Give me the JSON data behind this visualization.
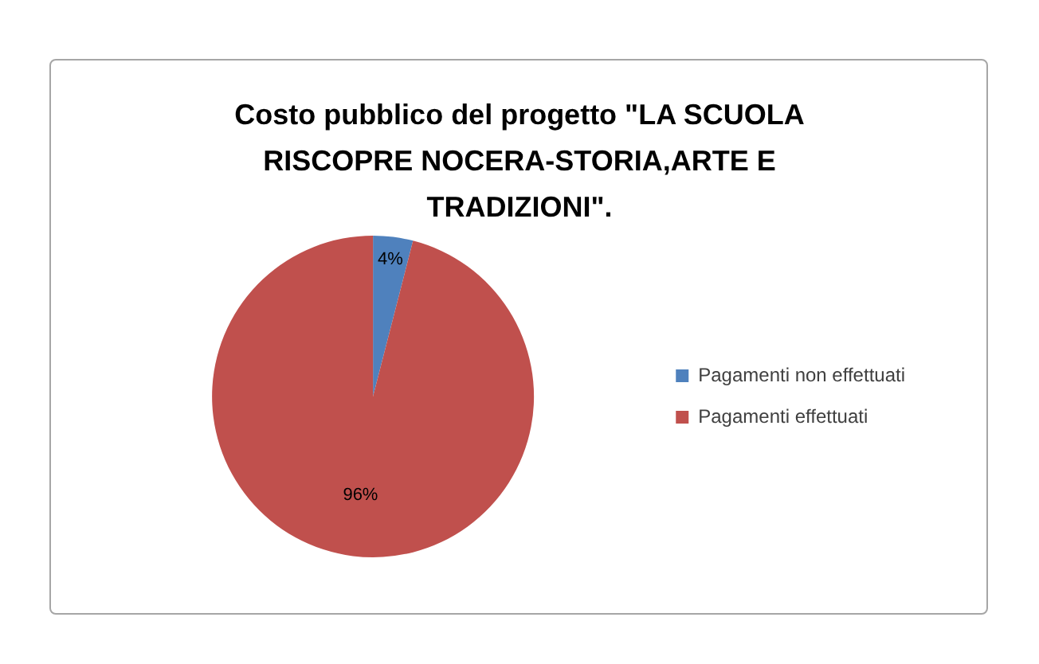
{
  "chart_data": {
    "type": "pie",
    "title": "Costo pubblico del progetto \"LA SCUOLA RISCOPRE NOCERA-STORIA,ARTE E TRADIZIONI\".",
    "categories": [
      "Pagamenti non effettuati",
      "Pagamenti effettuati"
    ],
    "values": [
      4,
      96
    ],
    "colors": [
      "#4f81bd",
      "#c0504d"
    ],
    "value_labels": [
      "4%",
      "96%"
    ],
    "legend": "right"
  }
}
